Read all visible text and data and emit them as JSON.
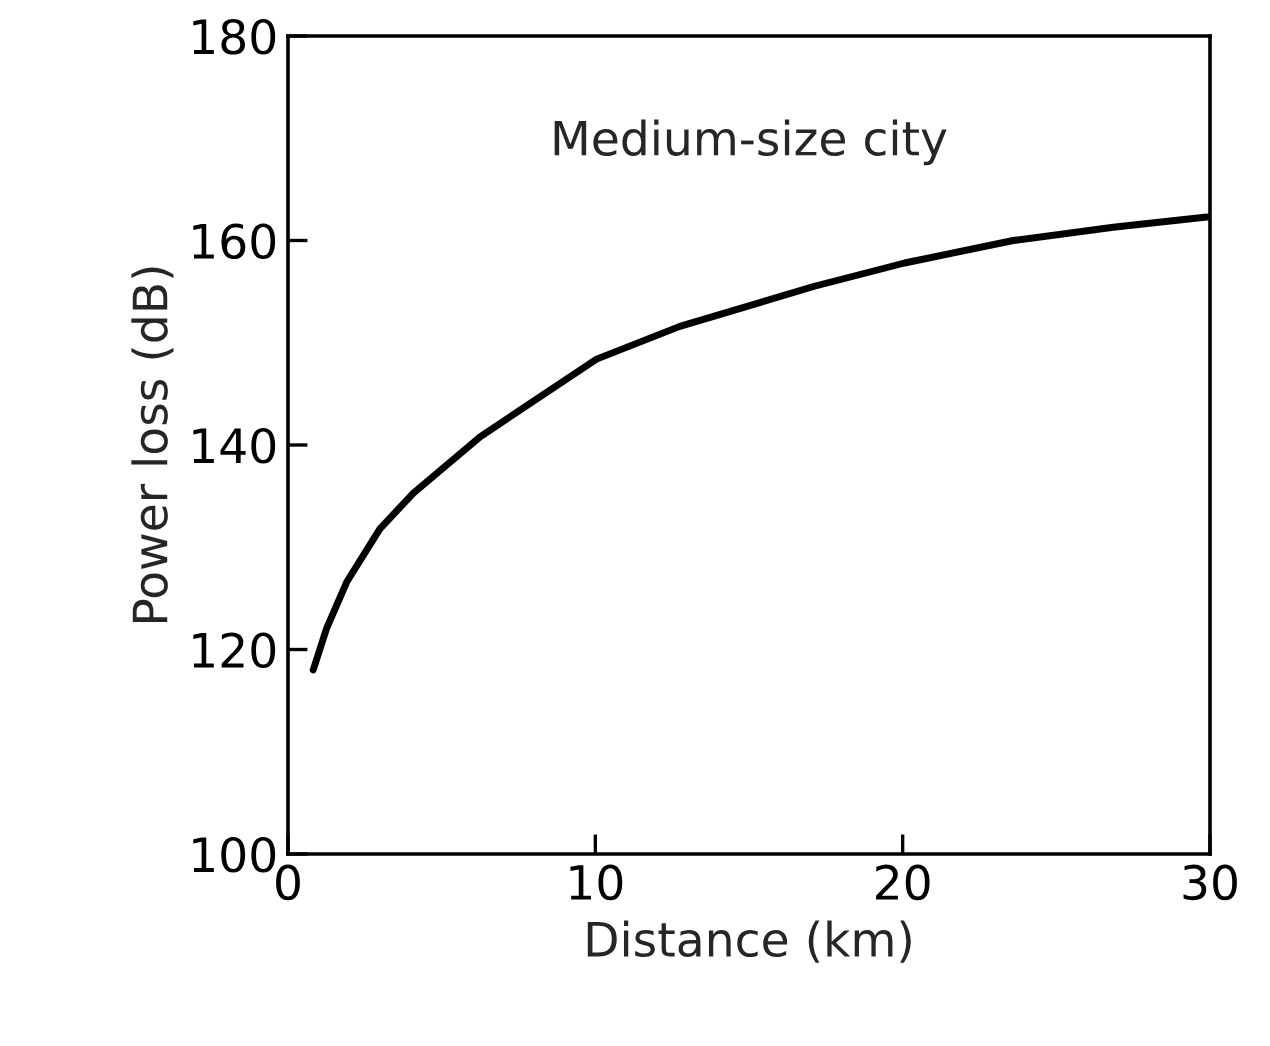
{
  "chart_data": {
    "type": "line",
    "xlabel": "Distance (km)",
    "ylabel": "Power loss (dB)",
    "annotations": [
      "Medium-size city"
    ],
    "x": [
      0.82,
      1.26,
      1.91,
      2.99,
      4.08,
      6.25,
      10.04,
      12.75,
      17.1,
      20.06,
      23.6,
      26.85,
      29.9
    ],
    "series": [
      {
        "color": "#000000",
        "values": [
          118.0,
          122.1,
          126.6,
          131.8,
          135.3,
          140.8,
          148.4,
          151.6,
          155.5,
          157.8,
          160.0,
          161.3,
          162.3
        ]
      }
    ],
    "xlim": [
      0,
      30
    ],
    "xticks": [
      0,
      10,
      20,
      30
    ],
    "ylim": [
      100,
      180
    ],
    "yticks": [
      100,
      120,
      140,
      160,
      180
    ],
    "grid": false,
    "marker": "none",
    "line_style": "solid"
  }
}
